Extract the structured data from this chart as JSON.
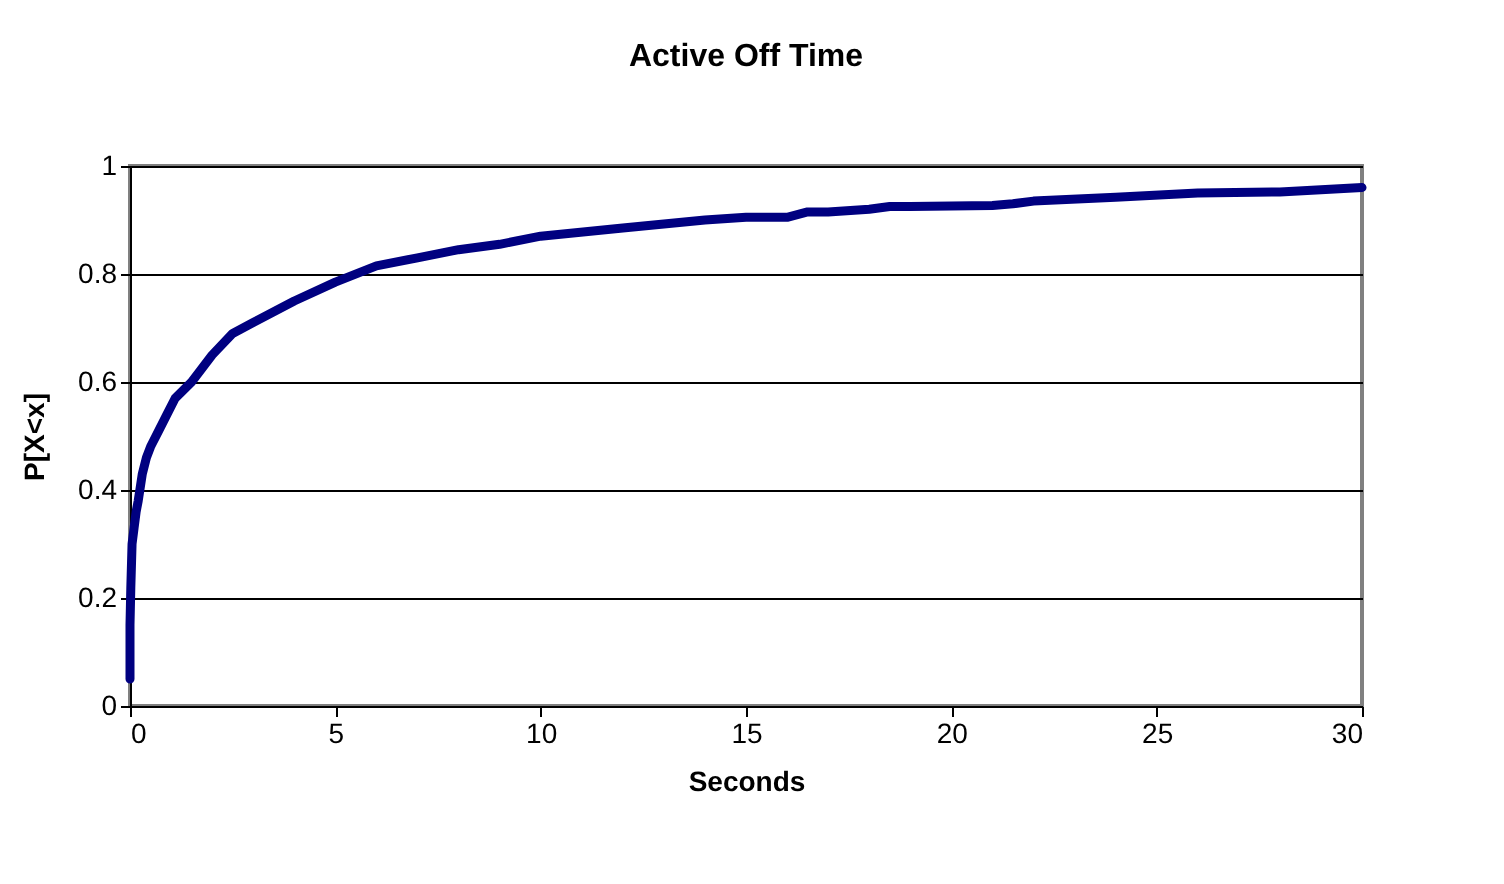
{
  "chart_data": {
    "type": "line",
    "title": "Active Off Time",
    "xlabel": "Seconds",
    "ylabel": "P[X<x]",
    "x": [
      0,
      0,
      0.02,
      0.05,
      0.1,
      0.15,
      0.2,
      0.3,
      0.4,
      0.5,
      0.7,
      0.9,
      1.1,
      1.5,
      2,
      2.5,
      3,
      4,
      5,
      6,
      7,
      8,
      9,
      10,
      12,
      14,
      15,
      16,
      16.5,
      17,
      18,
      18.5,
      19,
      21,
      21.5,
      22,
      24,
      26,
      28,
      30
    ],
    "series": [
      {
        "color": "#000080",
        "values": [
          0.05,
          0.15,
          0.22,
          0.3,
          0.33,
          0.36,
          0.38,
          0.43,
          0.46,
          0.48,
          0.51,
          0.54,
          0.57,
          0.6,
          0.65,
          0.69,
          0.71,
          0.75,
          0.785,
          0.815,
          0.83,
          0.845,
          0.855,
          0.87,
          0.885,
          0.9,
          0.905,
          0.905,
          0.915,
          0.915,
          0.92,
          0.925,
          0.925,
          0.927,
          0.93,
          0.935,
          0.942,
          0.95,
          0.952,
          0.96
        ]
      }
    ],
    "xlim": [
      0,
      30
    ],
    "xticks": [
      0,
      5,
      10,
      15,
      20,
      25,
      30
    ],
    "ylim": [
      0,
      1
    ],
    "yticks": [
      0,
      0.2,
      0.4,
      0.6,
      0.8,
      1
    ],
    "grid": "y",
    "marker": "none",
    "line_style": "solid"
  }
}
